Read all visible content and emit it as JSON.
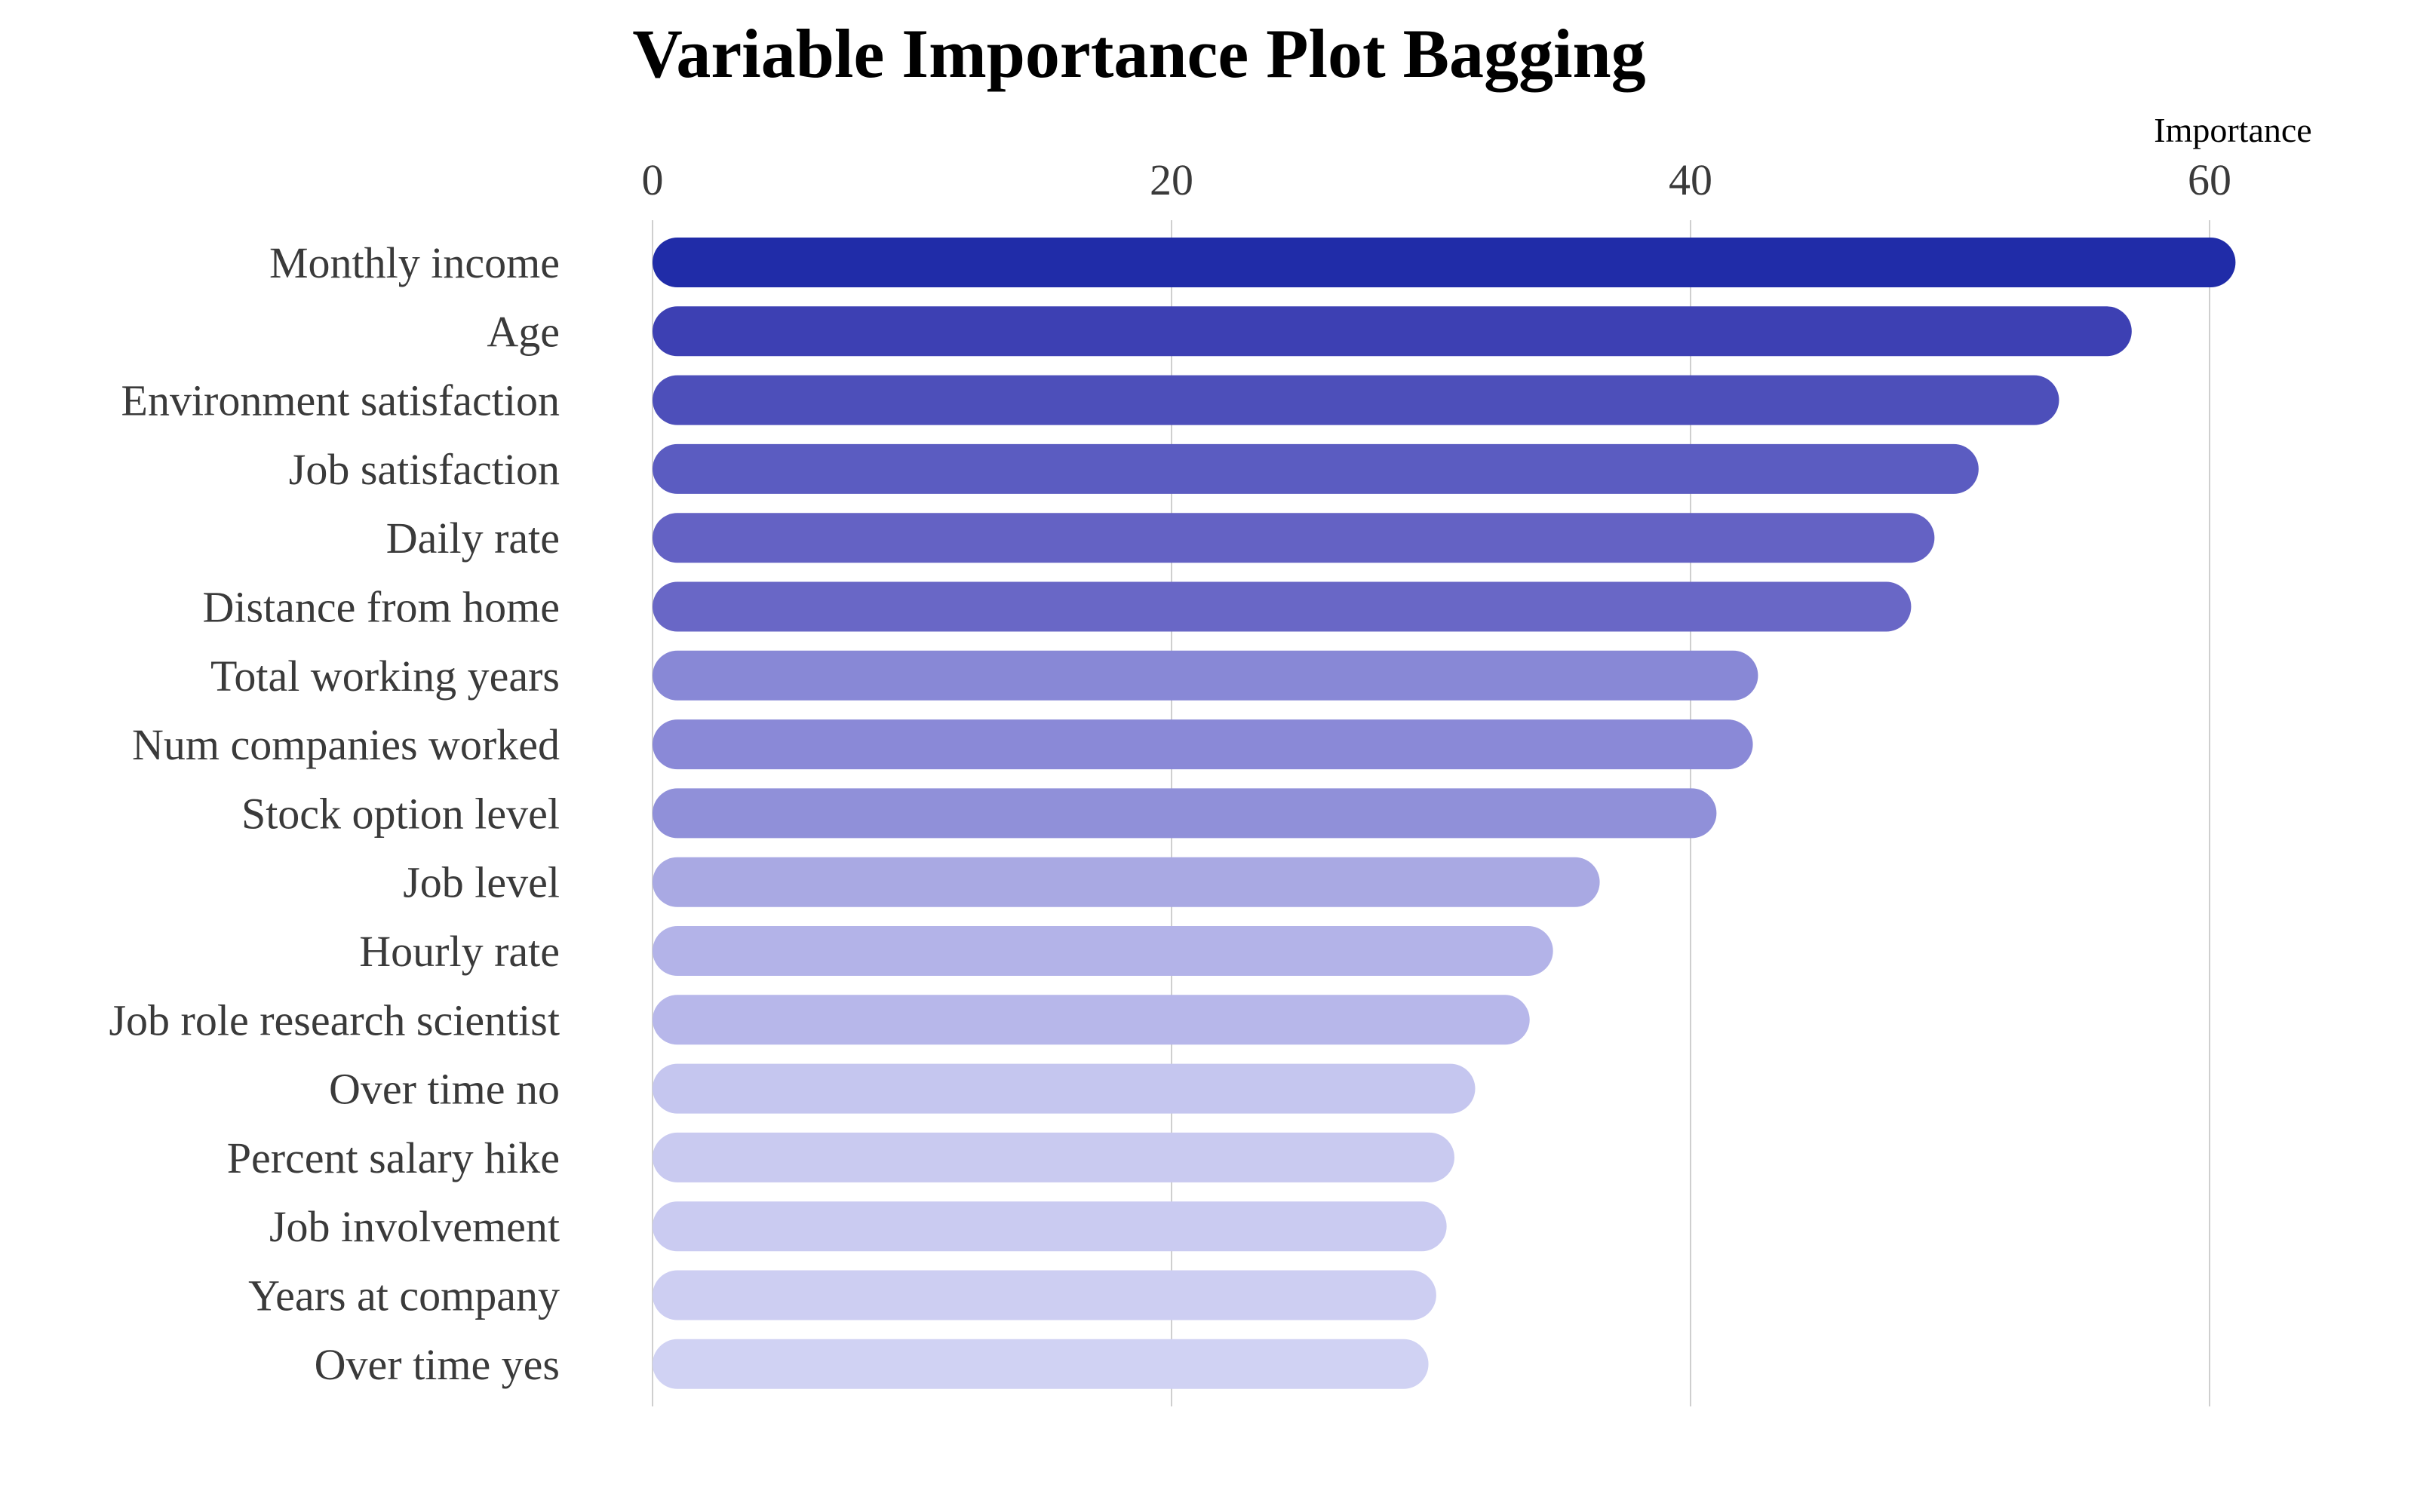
{
  "chart_data": {
    "type": "bar",
    "orientation": "horizontal",
    "title": "Variable Importance Plot Bagging",
    "xlabel": "Importance",
    "ylabel": "",
    "x_axis_position": "top",
    "xlim": [
      0,
      63
    ],
    "xticks": [
      0,
      20,
      40,
      60
    ],
    "grid": "vertical",
    "legend": "none",
    "categories": [
      "Monthly income",
      "Age",
      "Environment satisfaction",
      "Job satisfaction",
      "Daily rate",
      "Distance from home",
      "Total working years",
      "Num companies worked",
      "Stock option level",
      "Job level",
      "Hourly rate",
      "Job role research scientist",
      "Over time no",
      "Percent salary hike",
      "Job involvement",
      "Years at company",
      "Over time yes"
    ],
    "values": [
      61.0,
      57.0,
      54.2,
      51.1,
      49.4,
      48.5,
      42.6,
      42.4,
      41.0,
      36.5,
      34.7,
      33.8,
      31.7,
      30.9,
      30.6,
      30.2,
      29.9
    ],
    "colors": [
      "#202ca8",
      "#3d40b3",
      "#4d4fba",
      "#5b5cc1",
      "#6462c4",
      "#6967c6",
      "#8888d6",
      "#8a89d7",
      "#9090d9",
      "#a9a9e3",
      "#b3b3e8",
      "#b7b7ea",
      "#c5c6ef",
      "#c9caf0",
      "#cacbf1",
      "#cdcef2",
      "#d0d2f3"
    ]
  }
}
